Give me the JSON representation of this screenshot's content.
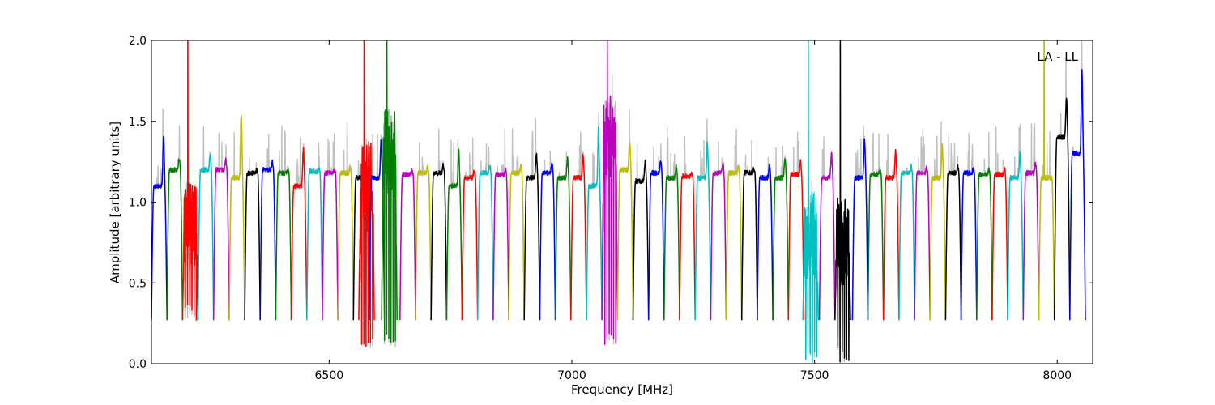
{
  "chart_data": {
    "type": "line",
    "title": "",
    "xlabel": "Frequency [MHz]",
    "ylabel": "Amplitude [arbitrary units]",
    "annotation": "LA - LL",
    "xlim": [
      6134,
      8073
    ],
    "ylim": [
      0,
      2.0
    ],
    "x_ticks": [
      6500,
      7000,
      7500,
      8000
    ],
    "x_tick_labels": [
      "6500",
      "7000",
      "7500",
      "8000"
    ],
    "y_ticks": [
      0.0,
      0.5,
      1.0,
      1.5,
      2.0
    ],
    "y_tick_labels": [
      "0.0",
      "0.5",
      "1.0",
      "1.5",
      "2.0"
    ],
    "grid": false,
    "legend": "none",
    "channel_width_mhz": 32,
    "edge_minimum": 0.27,
    "background_color": "#c0c0c0",
    "color_cycle": [
      "#0000ff",
      "#008000",
      "#ff0000",
      "#00bfbf",
      "#bf00bf",
      "#bfbf00",
      "#000000"
    ],
    "channels": [
      {
        "start": 6134,
        "level": 1.1,
        "peak": 1.42,
        "color": "#0000ff"
      },
      {
        "start": 6166,
        "level": 1.2,
        "peak": 1.27,
        "color": "#008000"
      },
      {
        "start": 6198,
        "level": 0.85,
        "spike": 2.0,
        "noisy": true,
        "color": "#ff0000"
      },
      {
        "start": 6230,
        "level": 1.2,
        "peak": 1.3,
        "color": "#00bfbf"
      },
      {
        "start": 6262,
        "level": 1.2,
        "peak": 1.26,
        "color": "#bf00bf"
      },
      {
        "start": 6294,
        "level": 1.15,
        "peak": 1.52,
        "color": "#bfbf00"
      },
      {
        "start": 6326,
        "level": 1.18,
        "peak": 1.2,
        "color": "#000000"
      },
      {
        "start": 6358,
        "level": 1.2,
        "peak": 1.25,
        "color": "#0000ff"
      },
      {
        "start": 6390,
        "level": 1.18,
        "peak": 1.21,
        "color": "#008000"
      },
      {
        "start": 6422,
        "level": 1.1,
        "peak": 1.34,
        "color": "#ff0000"
      },
      {
        "start": 6454,
        "level": 1.19,
        "peak": 1.2,
        "color": "#00bfbf"
      },
      {
        "start": 6486,
        "level": 1.18,
        "peak": 1.2,
        "color": "#bf00bf"
      },
      {
        "start": 6518,
        "level": 1.18,
        "peak": 1.22,
        "color": "#bfbf00"
      },
      {
        "start": 6550,
        "level": 1.15,
        "peak": 1.2,
        "color": "#000000"
      },
      {
        "start": 6561,
        "level": 1.1,
        "spike": 2.0,
        "noisy": true,
        "dip": 0.09,
        "color": "#ff0000"
      },
      {
        "start": 6582,
        "level": 1.15,
        "peak": 1.39,
        "color": "#0000ff"
      },
      {
        "start": 6608,
        "level": 1.3,
        "spike": 2.0,
        "noisy": true,
        "dip": 0.1,
        "color": "#008000"
      },
      {
        "start": 6646,
        "level": 1.17,
        "peak": 1.19,
        "color": "#bf00bf"
      },
      {
        "start": 6678,
        "level": 1.18,
        "peak": 1.22,
        "color": "#bfbf00"
      },
      {
        "start": 6710,
        "level": 1.18,
        "peak": 1.23,
        "color": "#000000"
      },
      {
        "start": 6742,
        "level": 1.1,
        "peak": 1.32,
        "color": "#008000"
      },
      {
        "start": 6774,
        "level": 1.15,
        "peak": 1.2,
        "color": "#ff0000"
      },
      {
        "start": 6806,
        "level": 1.18,
        "peak": 1.22,
        "color": "#00bfbf"
      },
      {
        "start": 6838,
        "level": 1.17,
        "peak": 1.2,
        "color": "#bf00bf"
      },
      {
        "start": 6870,
        "level": 1.18,
        "peak": 1.22,
        "color": "#bfbf00"
      },
      {
        "start": 6902,
        "level": 1.15,
        "peak": 1.3,
        "color": "#000000"
      },
      {
        "start": 6934,
        "level": 1.18,
        "peak": 1.24,
        "color": "#0000ff"
      },
      {
        "start": 6966,
        "level": 1.15,
        "peak": 1.27,
        "color": "#008000"
      },
      {
        "start": 6998,
        "level": 1.15,
        "peak": 1.3,
        "color": "#ff0000"
      },
      {
        "start": 7030,
        "level": 1.1,
        "peak": 1.45,
        "color": "#00bfbf"
      },
      {
        "start": 7062,
        "level": 1.4,
        "spike": 2.0,
        "noisy": true,
        "dip": 0.09,
        "color": "#bf00bf"
      },
      {
        "start": 7094,
        "level": 1.2,
        "peak": 1.38,
        "color": "#bfbf00"
      },
      {
        "start": 7126,
        "level": 1.13,
        "peak": 1.25,
        "color": "#000000"
      },
      {
        "start": 7158,
        "level": 1.18,
        "peak": 1.26,
        "color": "#0000ff"
      },
      {
        "start": 7190,
        "level": 1.15,
        "peak": 1.22,
        "color": "#008000"
      },
      {
        "start": 7222,
        "level": 1.16,
        "peak": 1.18,
        "color": "#ff0000"
      },
      {
        "start": 7254,
        "level": 1.15,
        "peak": 1.36,
        "color": "#00bfbf"
      },
      {
        "start": 7286,
        "level": 1.18,
        "peak": 1.24,
        "color": "#bf00bf"
      },
      {
        "start": 7318,
        "level": 1.18,
        "peak": 1.22,
        "color": "#bfbf00"
      },
      {
        "start": 7350,
        "level": 1.18,
        "peak": 1.21,
        "color": "#000000"
      },
      {
        "start": 7382,
        "level": 1.15,
        "peak": 1.23,
        "color": "#0000ff"
      },
      {
        "start": 7414,
        "level": 1.15,
        "peak": 1.27,
        "color": "#008000"
      },
      {
        "start": 7446,
        "level": 1.17,
        "peak": 1.25,
        "color": "#ff0000"
      },
      {
        "start": 7476,
        "level": 0.8,
        "spike": 2.0,
        "noisy": true,
        "dip": 0.0,
        "color": "#00bfbf"
      },
      {
        "start": 7510,
        "level": 1.15,
        "peak": 1.3,
        "color": "#bf00bf"
      },
      {
        "start": 7542,
        "level": 0.75,
        "spike": 2.0,
        "noisy": true,
        "dip": 0.0,
        "color": "#000000"
      },
      {
        "start": 7578,
        "level": 1.15,
        "peak": 1.39,
        "color": "#0000ff"
      },
      {
        "start": 7610,
        "level": 1.17,
        "peak": 1.2,
        "color": "#008000"
      },
      {
        "start": 7642,
        "level": 1.15,
        "peak": 1.32,
        "color": "#ff0000"
      },
      {
        "start": 7674,
        "level": 1.18,
        "peak": 1.22,
        "color": "#00bfbf"
      },
      {
        "start": 7706,
        "level": 1.18,
        "peak": 1.21,
        "color": "#bf00bf"
      },
      {
        "start": 7738,
        "level": 1.15,
        "peak": 1.35,
        "color": "#bfbf00"
      },
      {
        "start": 7770,
        "level": 1.18,
        "peak": 1.22,
        "color": "#000000"
      },
      {
        "start": 7802,
        "level": 1.18,
        "peak": 1.2,
        "color": "#0000ff"
      },
      {
        "start": 7834,
        "level": 1.17,
        "peak": 1.2,
        "color": "#008000"
      },
      {
        "start": 7866,
        "level": 1.17,
        "peak": 1.21,
        "color": "#ff0000"
      },
      {
        "start": 7898,
        "level": 1.15,
        "peak": 1.3,
        "color": "#00bfbf"
      },
      {
        "start": 7930,
        "level": 1.18,
        "peak": 1.24,
        "color": "#bf00bf"
      },
      {
        "start": 7962,
        "level": 1.15,
        "spike": 2.0,
        "color": "#bfbf00"
      },
      {
        "start": 7994,
        "level": 1.4,
        "peak": 1.65,
        "color": "#000000"
      },
      {
        "start": 8026,
        "level": 1.3,
        "peak": 1.82,
        "color": "#0000ff"
      }
    ]
  }
}
